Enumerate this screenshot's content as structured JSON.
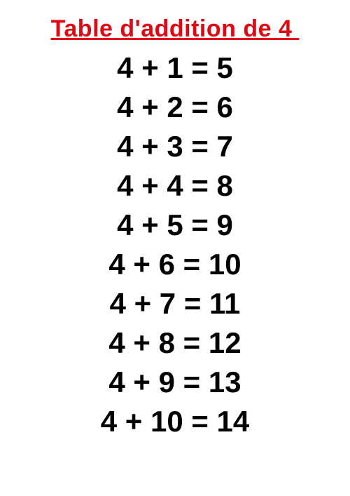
{
  "title": {
    "text": "Table d'addition de 4 ",
    "color": "#e30613",
    "fontsize": 34
  },
  "rows": {
    "fontsize": 42,
    "line_height": 56,
    "color": "#000000",
    "items": [
      "4 + 1 = 5",
      "4 + 2 = 6",
      "4 + 3 = 7",
      "4 + 4 = 8",
      "4 + 5 = 9",
      "4 + 6 = 10",
      "4 + 7 = 11",
      "4 + 8 = 12",
      "4 + 9 = 13",
      "4 + 10 = 14"
    ]
  },
  "background_color": "#ffffff"
}
